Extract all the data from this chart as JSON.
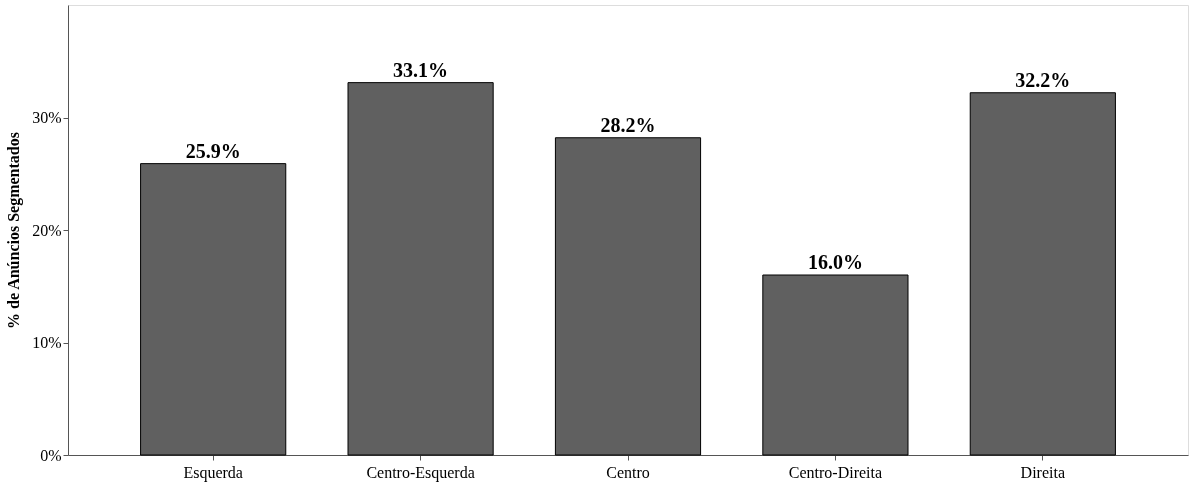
{
  "chart_data": {
    "type": "bar",
    "ylabel": "% de Anúncios Segmentados",
    "categories": [
      "Esquerda",
      "Centro-Esquerda",
      "Centro",
      "Centro-Direita",
      "Direita"
    ],
    "values": [
      25.9,
      33.1,
      28.2,
      16.0,
      32.2
    ],
    "value_labels": [
      "25.9%",
      "33.1%",
      "28.2%",
      "16.0%",
      "32.2%"
    ],
    "color": "#606060",
    "ylim": [
      0,
      40
    ],
    "yticks": [
      {
        "value": 0,
        "label": "0%"
      },
      {
        "value": 10,
        "label": "10%"
      },
      {
        "value": 20,
        "label": "20%"
      },
      {
        "value": 30,
        "label": "30%"
      }
    ],
    "grid": false
  }
}
